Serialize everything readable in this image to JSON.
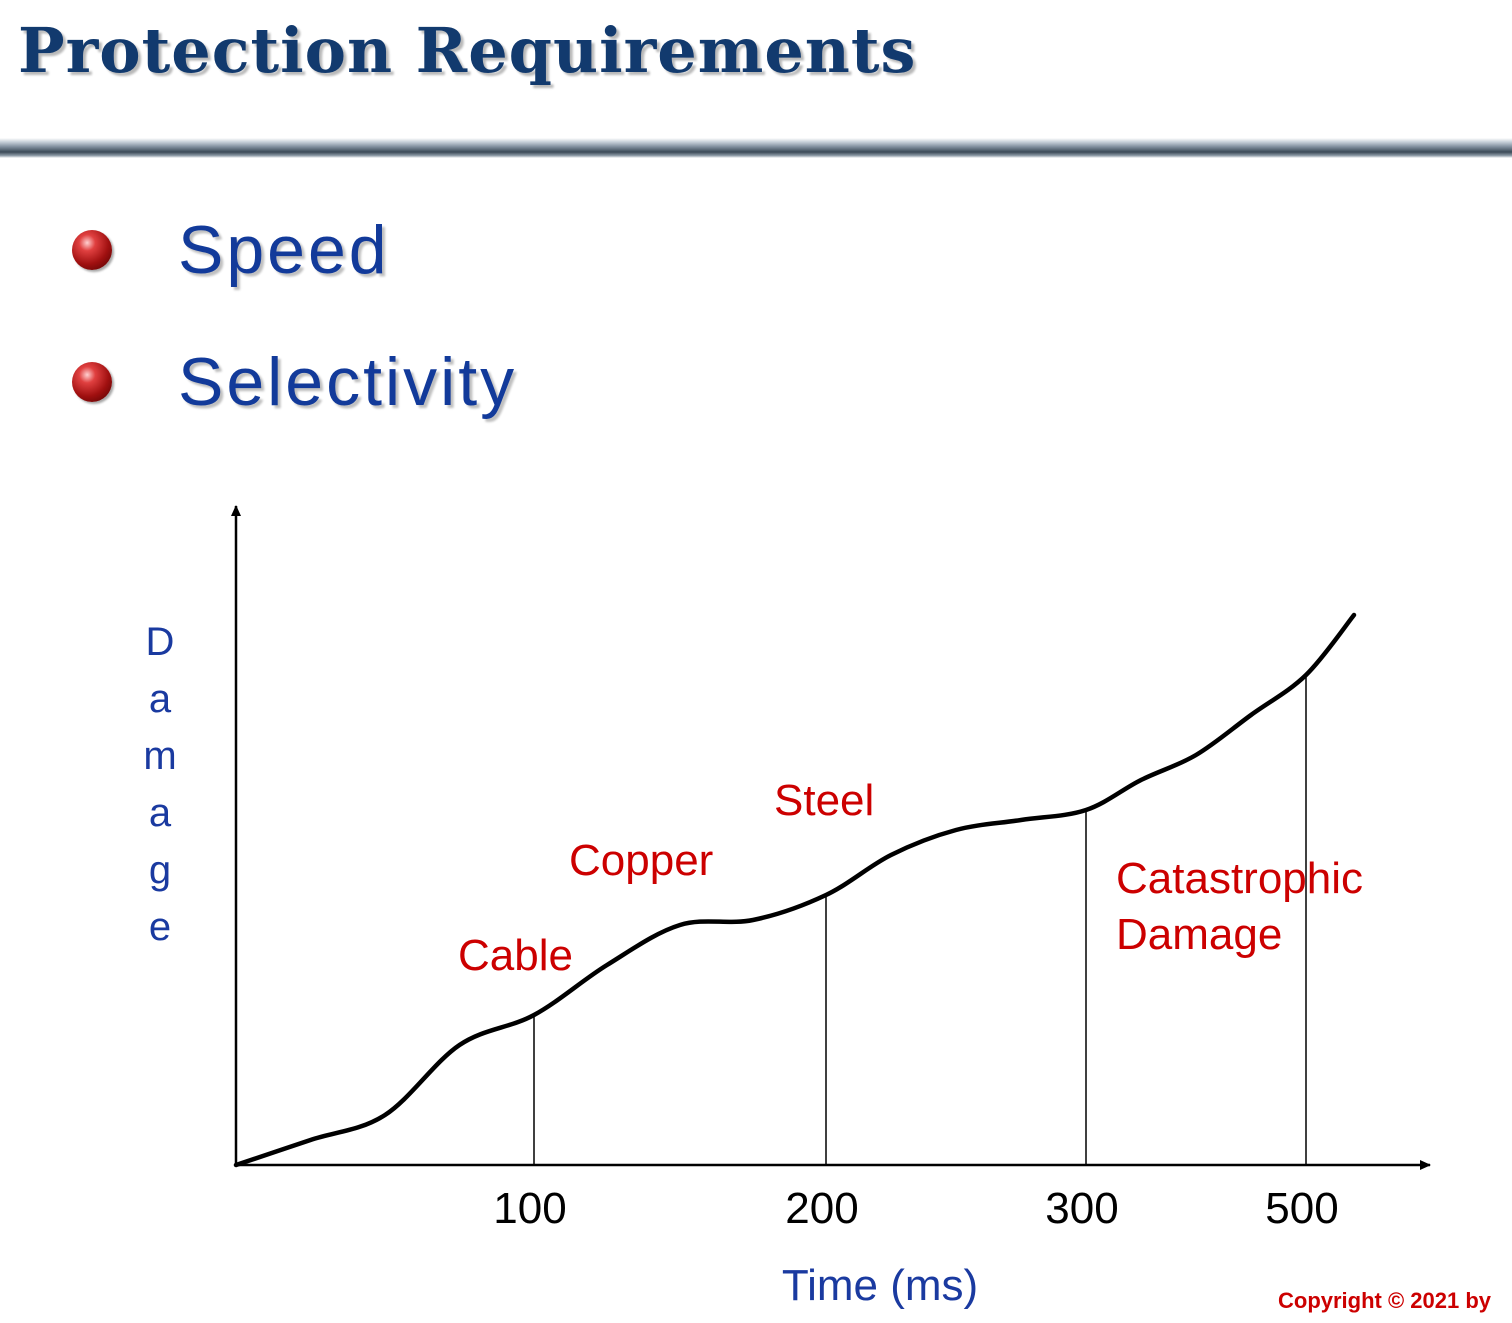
{
  "slide": {
    "title": "Protection Requirements",
    "bullets": [
      "Speed",
      "Selectivity"
    ],
    "copyright": "Copyright © 2021 by"
  },
  "chart_data": {
    "type": "line",
    "title": "",
    "xlabel": "Time (ms)",
    "ylabel": "Damage",
    "x_ticks": [
      "100",
      "200",
      "300",
      "500"
    ],
    "series": [
      {
        "values": [
          [
            "0",
            0.0
          ],
          [
            "25",
            5.0
          ],
          [
            "50",
            10.0
          ],
          [
            "75",
            24.0
          ],
          [
            "100",
            30.0
          ],
          [
            "125",
            40.0
          ],
          [
            "150",
            48.0
          ],
          [
            "175",
            49.0
          ],
          [
            "200",
            54.0
          ],
          [
            "225",
            62.0
          ],
          [
            "250",
            67.0
          ],
          [
            "275",
            69.0
          ],
          [
            "300",
            71.0
          ],
          [
            "350",
            77.0
          ],
          [
            "400",
            82.0
          ],
          [
            "450",
            90.0
          ],
          [
            "500",
            98.0
          ],
          [
            "520",
            110.0
          ]
        ]
      }
    ],
    "annotations": [
      {
        "text": "Cable",
        "marks_x": "100"
      },
      {
        "text": "Copper",
        "marks_x": "150"
      },
      {
        "text": "Steel",
        "marks_x": "200"
      },
      {
        "text": "Catastrophic\nDamage",
        "marks_x": "300-500"
      }
    ],
    "reference_lines_x": [
      "100",
      "200",
      "300",
      "500"
    ],
    "colors": {
      "curve": "#000000",
      "annotation": "#cc0000",
      "axis_text": "#1a3aa0",
      "tick_text": "#000000"
    },
    "grid": false,
    "legend": "none"
  }
}
